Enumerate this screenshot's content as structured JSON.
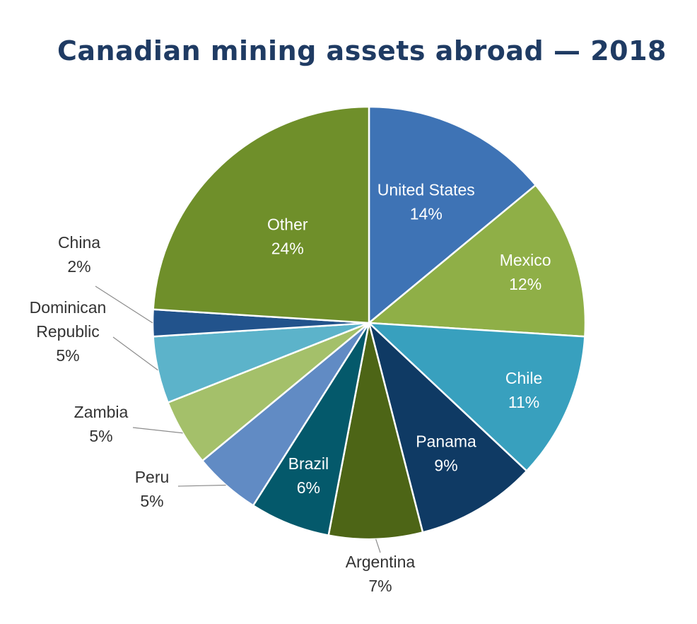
{
  "chart_data": {
    "type": "pie",
    "title": "Canadian mining assets abroad — 2018",
    "slices": [
      {
        "label": "United States",
        "lines": [
          "United States"
        ],
        "value": 14,
        "value_label": "14%",
        "color": "#3e73b5"
      },
      {
        "label": "Mexico",
        "lines": [
          "Mexico"
        ],
        "value": 12,
        "value_label": "12%",
        "color": "#8faf47"
      },
      {
        "label": "Chile",
        "lines": [
          "Chile"
        ],
        "value": 11,
        "value_label": "11%",
        "color": "#38a0be"
      },
      {
        "label": "Panama",
        "lines": [
          "Panama"
        ],
        "value": 9,
        "value_label": "9%",
        "color": "#0f3a64"
      },
      {
        "label": "Argentina",
        "lines": [
          "Argentina"
        ],
        "value": 7,
        "value_label": "7%",
        "color": "#4d6516"
      },
      {
        "label": "Brazil",
        "lines": [
          "Brazil"
        ],
        "value": 6,
        "value_label": "6%",
        "color": "#04596b"
      },
      {
        "label": "Peru",
        "lines": [
          "Peru"
        ],
        "value": 5,
        "value_label": "5%",
        "color": "#618bc4"
      },
      {
        "label": "Zambia",
        "lines": [
          "Zambia"
        ],
        "value": 5,
        "value_label": "5%",
        "color": "#a4c06a"
      },
      {
        "label": "Dominican Republic",
        "lines": [
          "Dominican",
          "Republic"
        ],
        "value": 5,
        "value_label": "5%",
        "color": "#5cb3ca"
      },
      {
        "label": "China",
        "lines": [
          "China"
        ],
        "value": 2,
        "value_label": "2%",
        "color": "#22538c"
      },
      {
        "label": "Other",
        "lines": [
          "Other"
        ],
        "value": 24,
        "value_label": "24%",
        "color": "#6f8f2a"
      }
    ]
  }
}
